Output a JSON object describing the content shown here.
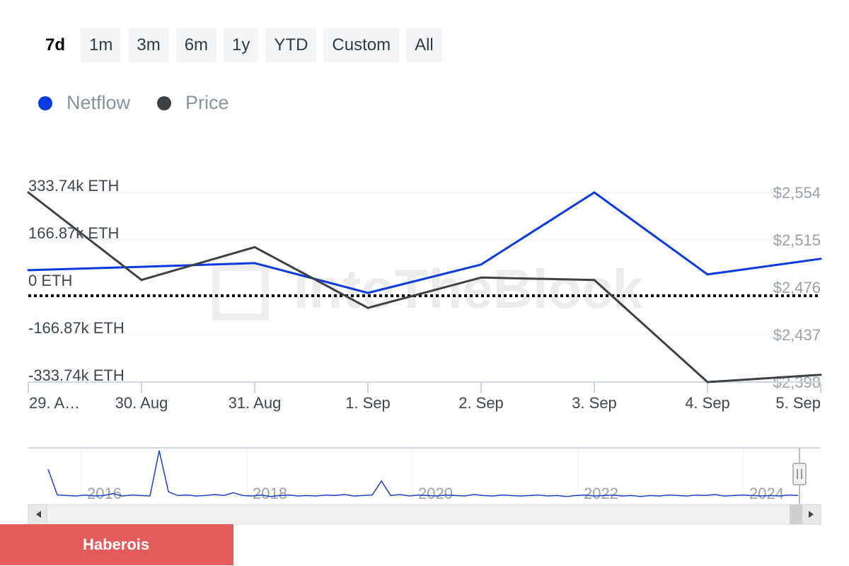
{
  "range_selector": {
    "buttons": [
      "7d",
      "1m",
      "3m",
      "6m",
      "1y",
      "YTD",
      "Custom",
      "All"
    ],
    "active": "7d"
  },
  "legend": [
    {
      "name": "Netflow",
      "color": "#0b3be0"
    },
    {
      "name": "Price",
      "color": "#3d4045"
    }
  ],
  "watermark": "IntoTheBlock",
  "badge": {
    "label": "Haberois"
  },
  "chart_data": {
    "type": "line",
    "x": [
      "29. A…",
      "30. Aug",
      "31. Aug",
      "1. Sep",
      "2. Sep",
      "3. Sep",
      "4. Sep",
      "5. Sep"
    ],
    "series": [
      {
        "name": "Netflow",
        "axis": "left",
        "color": "#0b3be0",
        "values": [
          60000,
          72000,
          85000,
          -20000,
          80000,
          333740,
          45000,
          100000
        ]
      },
      {
        "name": "Price",
        "axis": "right",
        "color": "#3d4045",
        "values": [
          2554,
          2482,
          2509,
          2459,
          2484,
          2482,
          2398,
          2404
        ]
      }
    ],
    "y_left": {
      "ticks": [
        333740,
        166870,
        0,
        -166870,
        -333740
      ],
      "tick_labels": [
        "333.74k ETH",
        "166.87k ETH",
        "0 ETH",
        "-166.87k ETH",
        "-333.74k ETH"
      ],
      "range": [
        -333740,
        333740
      ]
    },
    "y_right": {
      "ticks": [
        2554,
        2515,
        2476,
        2437,
        2398
      ],
      "tick_labels": [
        "$2,554",
        "$2,515",
        "$2,476",
        "$2,437",
        "$2,398"
      ],
      "range": [
        2398,
        2554
      ]
    },
    "zero_line": "dotted",
    "grid": true,
    "navigator": {
      "labels": [
        "2016",
        "2018",
        "2020",
        "2022",
        "2024"
      ],
      "values": [
        0.6,
        0.05,
        0.04,
        0.03,
        0.05,
        0.03,
        0.04,
        0.08,
        0.03,
        0.05,
        0.04,
        0.03,
        1.0,
        0.12,
        0.04,
        0.05,
        0.03,
        0.04,
        0.06,
        0.04,
        0.1,
        0.04,
        0.03,
        0.05,
        0.02,
        0.04,
        0.05,
        0.03,
        0.04,
        0.03,
        0.05,
        0.04,
        0.06,
        0.03,
        0.04,
        0.05,
        0.35,
        0.04,
        0.06,
        0.03,
        0.05,
        0.04,
        0.03,
        0.05,
        0.04,
        0.03,
        0.06,
        0.04,
        0.03,
        0.05,
        0.04,
        0.03,
        0.04,
        0.05,
        0.03,
        0.04,
        0.02,
        0.04,
        0.05,
        0.03,
        0.04,
        0.05,
        0.03,
        0.04,
        0.02,
        0.04,
        0.03,
        0.05,
        0.04,
        0.03,
        0.05,
        0.04,
        0.06,
        0.03,
        0.04,
        0.05,
        0.04,
        0.03,
        0.04,
        0.03,
        0.05,
        0.04
      ]
    }
  }
}
